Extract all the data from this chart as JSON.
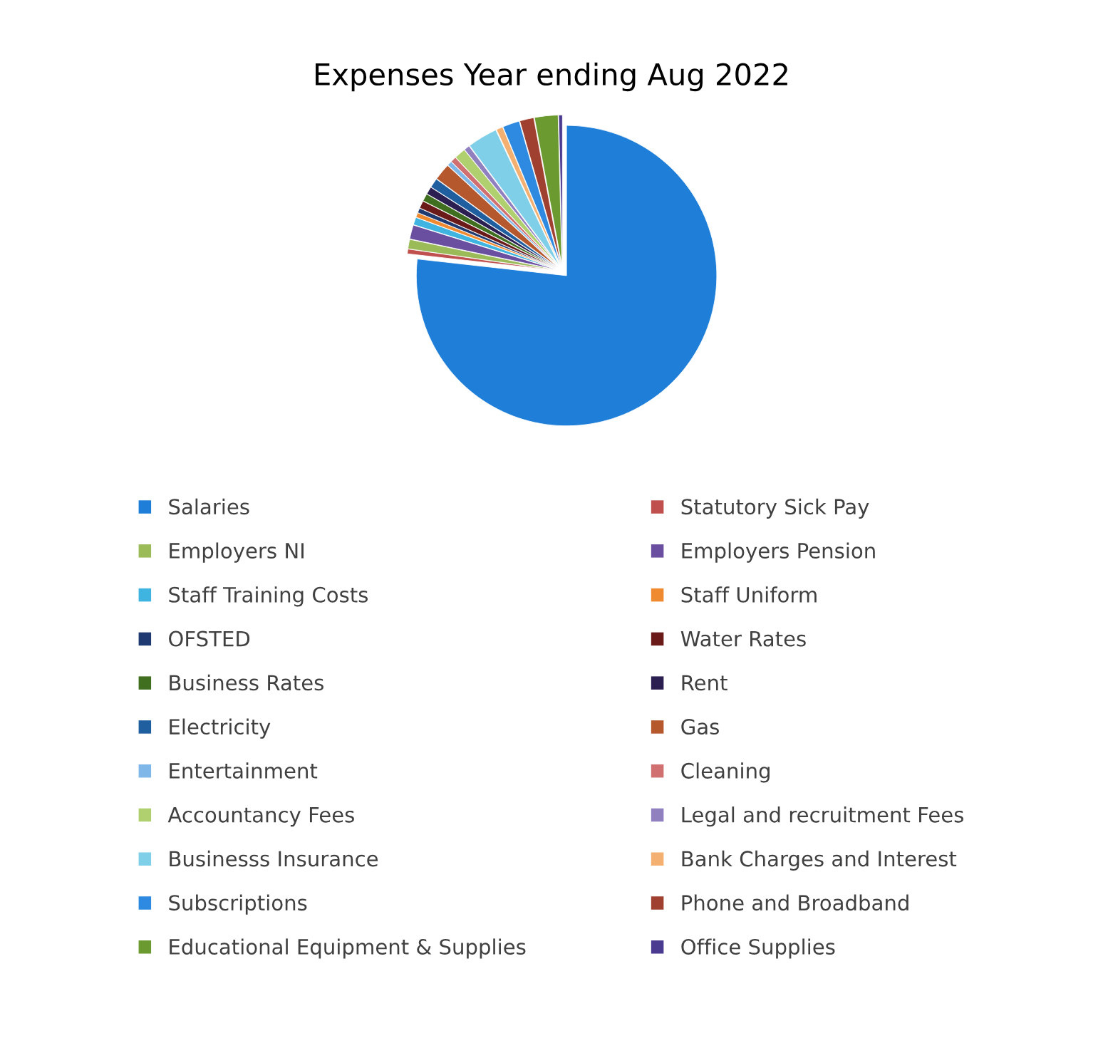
{
  "chart_data": {
    "type": "pie",
    "title": "Expenses Year ending Aug 2022",
    "categories": [
      "Salaries",
      "Statutory Sick Pay",
      "Employers NI",
      "Employers Pension",
      "Staff Training Costs",
      "Staff Uniform",
      "OFSTED",
      "Water Rates",
      "Business Rates",
      "Rent",
      "Electricity",
      "Gas",
      "Entertainment",
      "Cleaning",
      "Accountancy Fees",
      "Legal and recruitment Fees",
      "Businesss Insurance",
      "Bank Charges and Interest",
      "Subscriptions",
      "Phone and Broadband",
      "Educational Equipment & Supplies",
      "Office Supplies"
    ],
    "values": [
      76,
      0.5,
      1.0,
      1.5,
      0.8,
      0.5,
      0.5,
      0.8,
      0.8,
      0.8,
      1.0,
      1.8,
      0.5,
      0.6,
      1.2,
      0.6,
      3.2,
      0.7,
      1.8,
      1.5,
      2.5,
      0.4
    ],
    "colors": [
      "#1f7fd8",
      "#c0504d",
      "#9bbb59",
      "#6a4fa0",
      "#3fb4e0",
      "#f08a30",
      "#1f3a70",
      "#6b1a1a",
      "#3f6f1f",
      "#2a1f50",
      "#1f5fa0",
      "#b5582e",
      "#7fb8e8",
      "#d07070",
      "#b0d070",
      "#9080c0",
      "#7fcfe8",
      "#f4b070",
      "#2e8ae0",
      "#a04030",
      "#6a9a30",
      "#4a3a90"
    ],
    "legend": "bottom"
  }
}
